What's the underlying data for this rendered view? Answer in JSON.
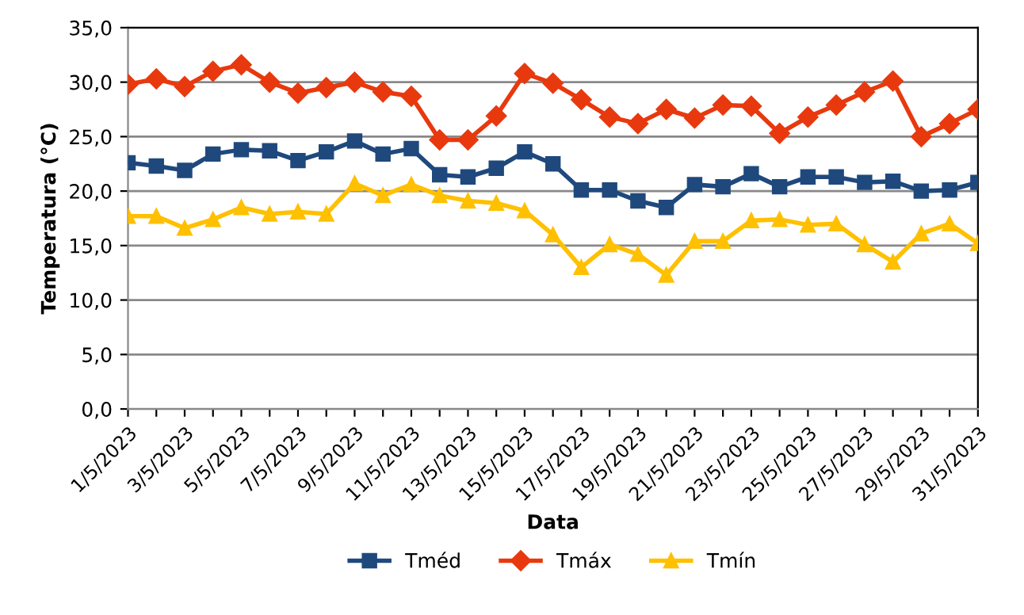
{
  "chart_data": {
    "type": "line",
    "xlabel": "Data",
    "ylabel": "Temperatura (°C)",
    "categories": [
      "1/5/2023",
      null,
      "3/5/2023",
      null,
      "5/5/2023",
      null,
      "7/5/2023",
      null,
      "9/5/2023",
      null,
      "11/5/2023",
      null,
      "13/5/2023",
      null,
      "15/5/2023",
      null,
      "17/5/2023",
      null,
      "19/5/2023",
      null,
      "21/5/2023",
      null,
      "23/5/2023",
      null,
      "25/5/2023",
      null,
      "27/5/2023",
      null,
      "29/5/2023",
      null,
      "31/5/2023"
    ],
    "series": [
      {
        "name": "Tméd",
        "color": "#1f497d",
        "marker": "square",
        "values": [
          22.6,
          22.3,
          21.9,
          23.4,
          23.8,
          23.7,
          22.8,
          23.6,
          24.6,
          23.4,
          23.9,
          21.5,
          21.3,
          22.1,
          23.6,
          22.5,
          20.1,
          20.1,
          19.1,
          18.5,
          20.6,
          20.4,
          21.6,
          20.4,
          21.3,
          21.3,
          20.8,
          20.9,
          20.0,
          20.1,
          20.8
        ]
      },
      {
        "name": "Tmáx",
        "color": "#e8390e",
        "marker": "diamond",
        "values": [
          29.8,
          30.3,
          29.6,
          31.0,
          31.6,
          30.0,
          29.0,
          29.5,
          30.0,
          29.1,
          28.7,
          24.7,
          24.7,
          26.9,
          30.8,
          29.9,
          28.4,
          26.8,
          26.2,
          27.5,
          26.7,
          27.9,
          27.8,
          25.3,
          26.8,
          27.9,
          29.1,
          30.1,
          25.0,
          26.2,
          27.5
        ]
      },
      {
        "name": "Tmín",
        "color": "#ffc000",
        "marker": "triangle",
        "values": [
          17.7,
          17.7,
          16.6,
          17.4,
          18.5,
          17.9,
          18.1,
          17.9,
          20.7,
          19.6,
          20.6,
          19.6,
          19.1,
          18.9,
          18.2,
          16.0,
          13.0,
          15.1,
          14.2,
          12.3,
          15.4,
          15.4,
          17.3,
          17.4,
          16.9,
          17.0,
          15.1,
          13.5,
          16.1,
          17.0,
          15.2
        ]
      }
    ],
    "ylim": [
      0,
      35
    ],
    "yticks": [
      {
        "value": 0,
        "label": "0,0"
      },
      {
        "value": 5,
        "label": "5,0"
      },
      {
        "value": 10,
        "label": "10,0"
      },
      {
        "value": 15,
        "label": "15,0"
      },
      {
        "value": 20,
        "label": "20,0"
      },
      {
        "value": 25,
        "label": "25,0"
      },
      {
        "value": 30,
        "label": "30,0"
      },
      {
        "value": 35,
        "label": "35,0"
      }
    ],
    "grid": "y",
    "legend": "bottom",
    "line_style": "solid"
  }
}
